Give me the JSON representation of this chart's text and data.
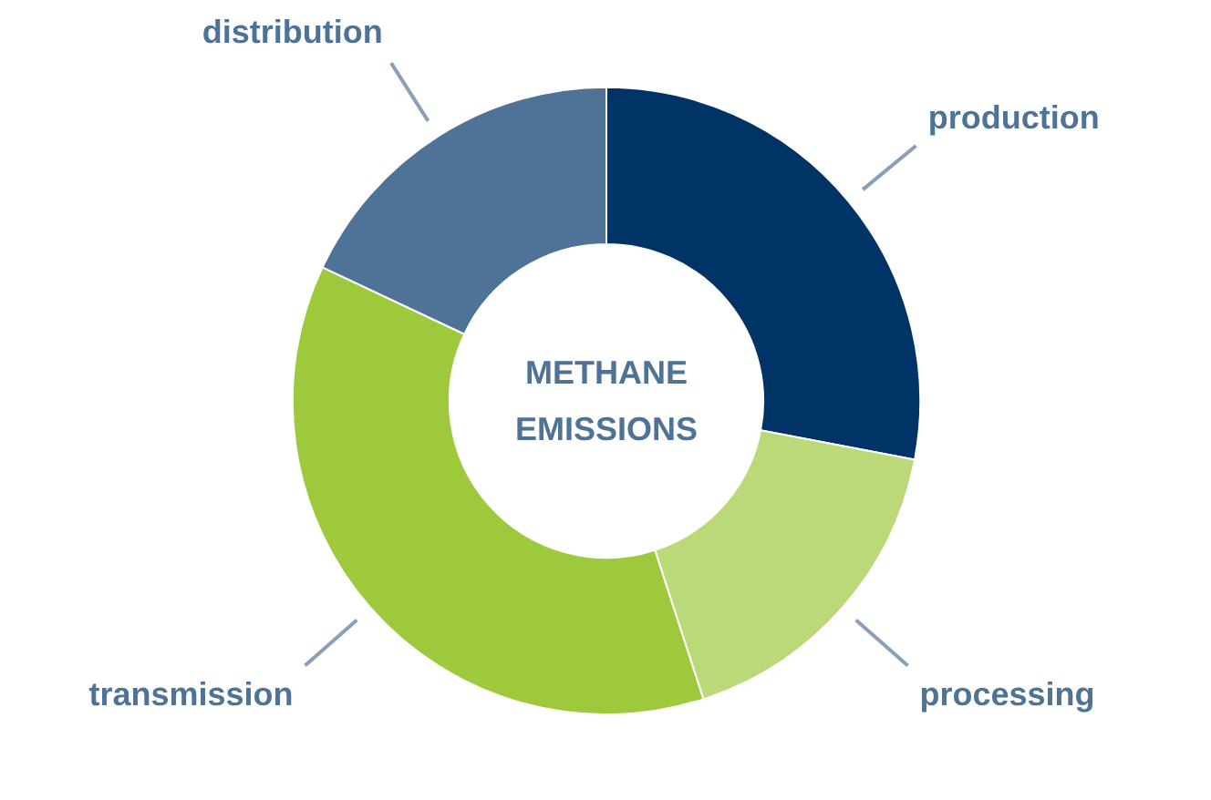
{
  "chart_data": {
    "type": "donut",
    "title": "METHANE EMISSIONS",
    "categories": [
      "production",
      "processing",
      "transmission",
      "distribution"
    ],
    "values": [
      28,
      17,
      37,
      18
    ],
    "colors": [
      "#003366",
      "#bcd97a",
      "#9ec93d",
      "#4f7396"
    ]
  }
}
